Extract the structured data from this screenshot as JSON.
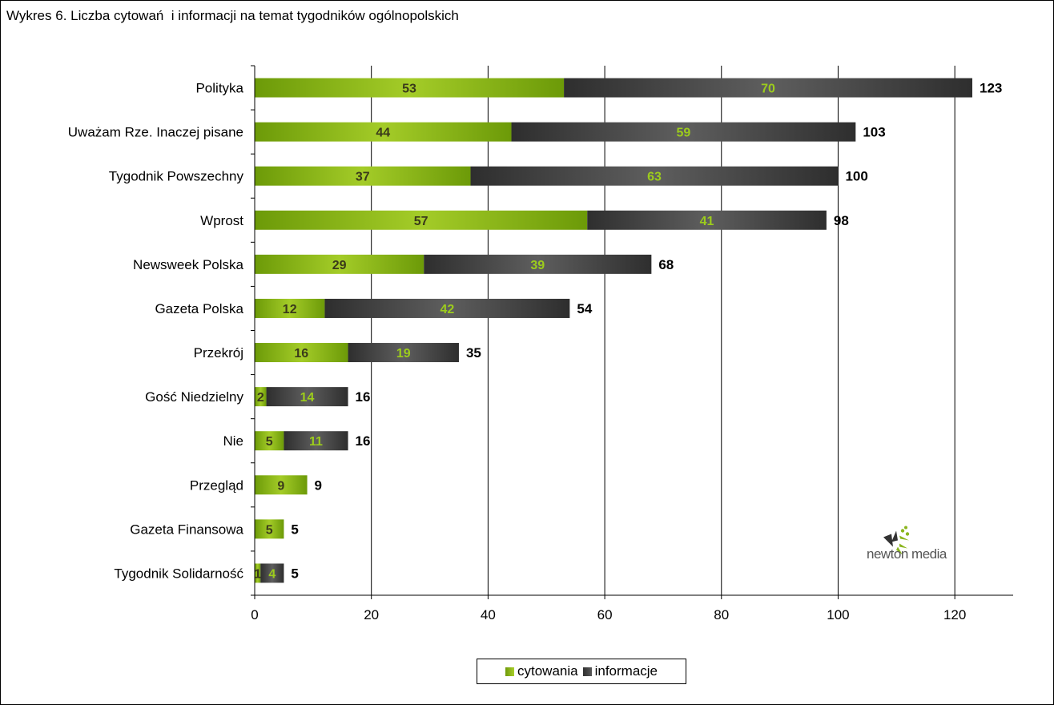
{
  "chart_data": {
    "type": "bar",
    "orientation": "horizontal",
    "stacked": true,
    "title": "Wykres 6. Liczba cytowań  i informacji na temat tygodników ogólnopolskich",
    "categories": [
      "Polityka",
      "Uważam Rze. Inaczej pisane",
      "Tygodnik Powszechny",
      "Wprost",
      "Newsweek Polska",
      "Gazeta Polska",
      "Przekrój",
      "Gość Niedzielny",
      "Nie",
      "Przegląd",
      "Gazeta Finansowa",
      "Tygodnik Solidarność"
    ],
    "series": [
      {
        "name": "cytowania",
        "values": [
          53,
          44,
          37,
          57,
          29,
          12,
          16,
          2,
          5,
          9,
          5,
          1
        ],
        "color": "#8ab51c"
      },
      {
        "name": "informacje",
        "values": [
          70,
          59,
          63,
          41,
          39,
          42,
          19,
          14,
          11,
          0,
          0,
          4
        ],
        "color": "#3c3c3c"
      }
    ],
    "totals": [
      123,
      103,
      100,
      98,
      68,
      54,
      35,
      16,
      16,
      9,
      5,
      5
    ],
    "xlim": [
      0,
      130
    ],
    "xticks": [
      "0",
      "20",
      "40",
      "60",
      "80",
      "100",
      "120"
    ],
    "grid": true,
    "legend_position": "bottom"
  },
  "logo": {
    "text": "newton media"
  },
  "colors": {
    "green_label": "#9ccc1c",
    "dark_label": "#3a3a1a",
    "grid": "#000000"
  }
}
